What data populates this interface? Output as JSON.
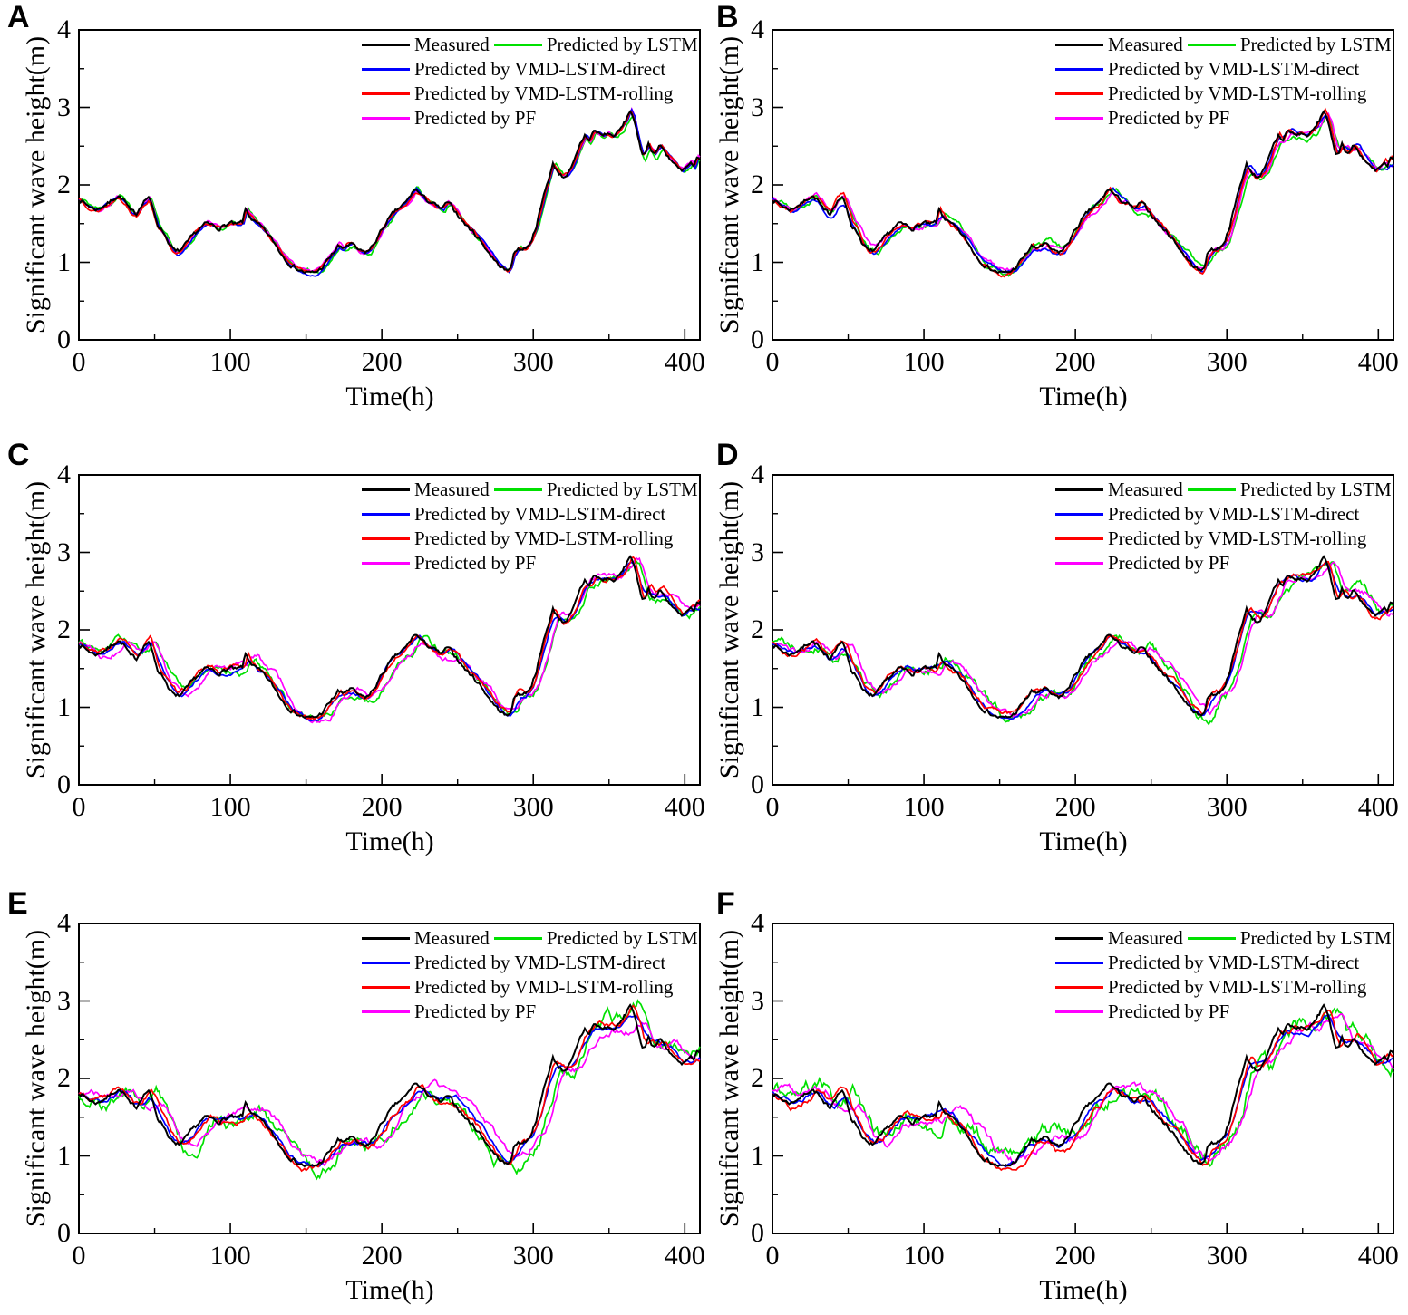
{
  "figure": {
    "axes": {
      "x": {
        "label": "Time(h)",
        "min": 0,
        "max": 410,
        "major_ticks": [
          0,
          100,
          200,
          300,
          400
        ],
        "minor_ticks": [
          50,
          150,
          250,
          350
        ]
      },
      "y": {
        "label": "Significant wave height(m)",
        "min": 0,
        "max": 4,
        "major_ticks": [
          0,
          1,
          2,
          3,
          4
        ],
        "minor_ticks": [
          0.5,
          1.5,
          2.5,
          3.5
        ]
      }
    },
    "legend": {
      "entries": [
        {
          "key": "measured",
          "label": "Measured",
          "color": "#000000"
        },
        {
          "key": "lstm",
          "label": "Predicted by LSTM",
          "color": "#00E000"
        },
        {
          "key": "vmd-lstm-direct",
          "label": "Predicted by VMD-LSTM-direct",
          "color": "#0000FF"
        },
        {
          "key": "vmd-lstm-rolling",
          "label": "Predicted by VMD-LSTM-rolling",
          "color": "#FF0000"
        },
        {
          "key": "pf",
          "label": "Predicted by PF",
          "color": "#FF00FF"
        }
      ]
    }
  },
  "chart_data": {
    "type": "line",
    "x_unit": "h",
    "x_range": [
      0,
      410
    ],
    "y_range": [
      0,
      4
    ],
    "grid": false,
    "legend_position": "top-right-inside",
    "measured": {
      "name": "Measured",
      "color": "#000000",
      "jitter_m": 0.02,
      "jitter_seed": 7,
      "x": [
        0,
        4,
        8,
        12,
        16,
        20,
        24,
        26,
        30,
        34,
        38,
        42,
        46,
        48,
        52,
        56,
        60,
        64,
        68,
        72,
        76,
        80,
        84,
        88,
        92,
        96,
        100,
        104,
        108,
        110,
        113,
        116,
        120,
        124,
        128,
        132,
        136,
        140,
        144,
        148,
        152,
        156,
        160,
        164,
        168,
        171,
        174,
        177,
        180,
        183,
        186,
        189,
        192,
        196,
        200,
        204,
        208,
        212,
        216,
        220,
        222,
        225,
        228,
        231,
        234,
        237,
        240,
        243,
        246,
        249,
        252,
        256,
        260,
        264,
        268,
        272,
        276,
        280,
        283,
        285,
        287,
        290,
        293,
        296,
        299,
        302,
        305,
        308,
        311,
        313,
        316,
        319,
        322,
        325,
        328,
        331,
        334,
        337,
        340,
        343,
        346,
        349,
        352,
        355,
        358,
        361,
        364,
        366,
        368,
        370,
        372,
        374,
        376,
        378,
        380,
        382,
        384,
        386,
        388,
        390,
        392,
        395,
        398,
        401,
        404,
        406,
        408
      ],
      "y": [
        1.82,
        1.76,
        1.71,
        1.68,
        1.73,
        1.77,
        1.84,
        1.86,
        1.8,
        1.66,
        1.63,
        1.78,
        1.85,
        1.74,
        1.49,
        1.39,
        1.23,
        1.13,
        1.17,
        1.26,
        1.36,
        1.44,
        1.5,
        1.48,
        1.44,
        1.47,
        1.51,
        1.48,
        1.52,
        1.68,
        1.59,
        1.52,
        1.46,
        1.38,
        1.28,
        1.16,
        1.05,
        0.97,
        0.92,
        0.88,
        0.86,
        0.87,
        0.92,
        1.02,
        1.12,
        1.21,
        1.17,
        1.22,
        1.24,
        1.18,
        1.14,
        1.13,
        1.16,
        1.28,
        1.42,
        1.54,
        1.64,
        1.71,
        1.77,
        1.89,
        1.95,
        1.89,
        1.83,
        1.79,
        1.76,
        1.71,
        1.69,
        1.77,
        1.72,
        1.65,
        1.57,
        1.47,
        1.4,
        1.31,
        1.2,
        1.09,
        0.99,
        0.92,
        0.88,
        0.95,
        1.1,
        1.18,
        1.17,
        1.2,
        1.3,
        1.48,
        1.7,
        1.95,
        2.14,
        2.26,
        2.18,
        2.11,
        2.13,
        2.2,
        2.35,
        2.52,
        2.64,
        2.58,
        2.7,
        2.67,
        2.64,
        2.67,
        2.63,
        2.66,
        2.73,
        2.83,
        2.96,
        2.88,
        2.7,
        2.52,
        2.4,
        2.44,
        2.53,
        2.46,
        2.41,
        2.46,
        2.51,
        2.45,
        2.4,
        2.35,
        2.3,
        2.22,
        2.17,
        2.22,
        2.27,
        2.21,
        2.33
      ]
    },
    "panels": [
      {
        "panel": "A",
        "series": [
          {
            "name": "Predicted by LSTM",
            "key": "lstm",
            "color": "#00E000",
            "derived_from": "measured",
            "lag_h": 1.5,
            "noise_m": 0.05,
            "smooth_h": 0,
            "seed": 11
          },
          {
            "name": "Predicted by VMD-LSTM-direct",
            "key": "vmd-lstm-direct",
            "color": "#0000FF",
            "derived_from": "measured",
            "lag_h": 1,
            "noise_m": 0.028,
            "smooth_h": 0,
            "seed": 12
          },
          {
            "name": "Predicted by VMD-LSTM-rolling",
            "key": "vmd-lstm-rolling",
            "color": "#FF0000",
            "derived_from": "measured",
            "lag_h": 0.5,
            "noise_m": 0.035,
            "smooth_h": 0,
            "seed": 13
          },
          {
            "name": "Predicted by PF",
            "key": "pf",
            "color": "#FF00FF",
            "derived_from": "measured",
            "lag_h": 1,
            "noise_m": 0.045,
            "smooth_h": 0,
            "seed": 14
          }
        ]
      },
      {
        "panel": "B",
        "series": [
          {
            "name": "Predicted by LSTM",
            "key": "lstm",
            "color": "#00E000",
            "derived_from": "measured",
            "lag_h": 3,
            "noise_m": 0.07,
            "smooth_h": 2,
            "seed": 21
          },
          {
            "name": "Predicted by VMD-LSTM-direct",
            "key": "vmd-lstm-direct",
            "color": "#0000FF",
            "derived_from": "measured",
            "lag_h": 1.5,
            "noise_m": 0.04,
            "smooth_h": 2,
            "seed": 22
          },
          {
            "name": "Predicted by VMD-LSTM-rolling",
            "key": "vmd-lstm-rolling",
            "color": "#FF0000",
            "derived_from": "measured",
            "lag_h": 1,
            "noise_m": 0.05,
            "smooth_h": 0,
            "seed": 23
          },
          {
            "name": "Predicted by PF",
            "key": "pf",
            "color": "#FF00FF",
            "derived_from": "measured",
            "lag_h": 2.5,
            "noise_m": 0.06,
            "smooth_h": 2,
            "seed": 24
          }
        ]
      },
      {
        "panel": "C",
        "series": [
          {
            "name": "Predicted by LSTM",
            "key": "lstm",
            "color": "#00E000",
            "derived_from": "measured",
            "lag_h": 4.5,
            "noise_m": 0.09,
            "smooth_h": 3,
            "seed": 31
          },
          {
            "name": "Predicted by VMD-LSTM-direct",
            "key": "vmd-lstm-direct",
            "color": "#0000FF",
            "derived_from": "measured",
            "lag_h": 2,
            "noise_m": 0.045,
            "smooth_h": 3,
            "seed": 32
          },
          {
            "name": "Predicted by VMD-LSTM-rolling",
            "key": "vmd-lstm-rolling",
            "color": "#FF0000",
            "derived_from": "measured",
            "lag_h": 1.5,
            "noise_m": 0.055,
            "smooth_h": 0,
            "seed": 33
          },
          {
            "name": "Predicted by PF",
            "key": "pf",
            "color": "#FF00FF",
            "derived_from": "measured",
            "lag_h": 5.5,
            "noise_m": 0.07,
            "smooth_h": 3,
            "seed": 34
          }
        ]
      },
      {
        "panel": "D",
        "series": [
          {
            "name": "Predicted by LSTM",
            "key": "lstm",
            "color": "#00E000",
            "derived_from": "measured",
            "lag_h": 5.5,
            "noise_m": 0.11,
            "smooth_h": 3,
            "seed": 41
          },
          {
            "name": "Predicted by VMD-LSTM-direct",
            "key": "vmd-lstm-direct",
            "color": "#0000FF",
            "derived_from": "measured",
            "lag_h": 2.5,
            "noise_m": 0.05,
            "smooth_h": 4,
            "seed": 42
          },
          {
            "name": "Predicted by VMD-LSTM-rolling",
            "key": "vmd-lstm-rolling",
            "color": "#FF0000",
            "derived_from": "measured",
            "lag_h": 2,
            "noise_m": 0.06,
            "smooth_h": 2,
            "seed": 43
          },
          {
            "name": "Predicted by PF",
            "key": "pf",
            "color": "#FF00FF",
            "derived_from": "measured",
            "lag_h": 7,
            "noise_m": 0.075,
            "smooth_h": 4,
            "seed": 44
          }
        ]
      },
      {
        "panel": "E",
        "series": [
          {
            "name": "Predicted by LSTM",
            "key": "lstm",
            "color": "#00E000",
            "derived_from": "measured",
            "lag_h": 6.5,
            "noise_m": 0.15,
            "smooth_h": 3,
            "seed": 51
          },
          {
            "name": "Predicted by VMD-LSTM-direct",
            "key": "vmd-lstm-direct",
            "color": "#0000FF",
            "derived_from": "measured",
            "lag_h": 3,
            "noise_m": 0.055,
            "smooth_h": 5,
            "seed": 52
          },
          {
            "name": "Predicted by VMD-LSTM-rolling",
            "key": "vmd-lstm-rolling",
            "color": "#FF0000",
            "derived_from": "measured",
            "lag_h": 2.5,
            "noise_m": 0.07,
            "smooth_h": 2,
            "seed": 53
          },
          {
            "name": "Predicted by PF",
            "key": "pf",
            "color": "#FF00FF",
            "derived_from": "measured",
            "lag_h": 9,
            "noise_m": 0.085,
            "smooth_h": 5,
            "seed": 54
          }
        ]
      },
      {
        "panel": "F",
        "series": [
          {
            "name": "Predicted by LSTM",
            "key": "lstm",
            "color": "#00E000",
            "derived_from": "measured",
            "lag_h": 7.5,
            "noise_m": 0.18,
            "smooth_h": 3,
            "seed": 61
          },
          {
            "name": "Predicted by VMD-LSTM-direct",
            "key": "vmd-lstm-direct",
            "color": "#0000FF",
            "derived_from": "measured",
            "lag_h": 3.5,
            "noise_m": 0.06,
            "smooth_h": 5,
            "seed": 62
          },
          {
            "name": "Predicted by VMD-LSTM-rolling",
            "key": "vmd-lstm-rolling",
            "color": "#FF0000",
            "derived_from": "measured",
            "lag_h": 3,
            "noise_m": 0.075,
            "smooth_h": 2,
            "seed": 63
          },
          {
            "name": "Predicted by PF",
            "key": "pf",
            "color": "#FF00FF",
            "derived_from": "measured",
            "lag_h": 10.5,
            "noise_m": 0.095,
            "smooth_h": 6,
            "seed": 64
          }
        ]
      }
    ]
  }
}
